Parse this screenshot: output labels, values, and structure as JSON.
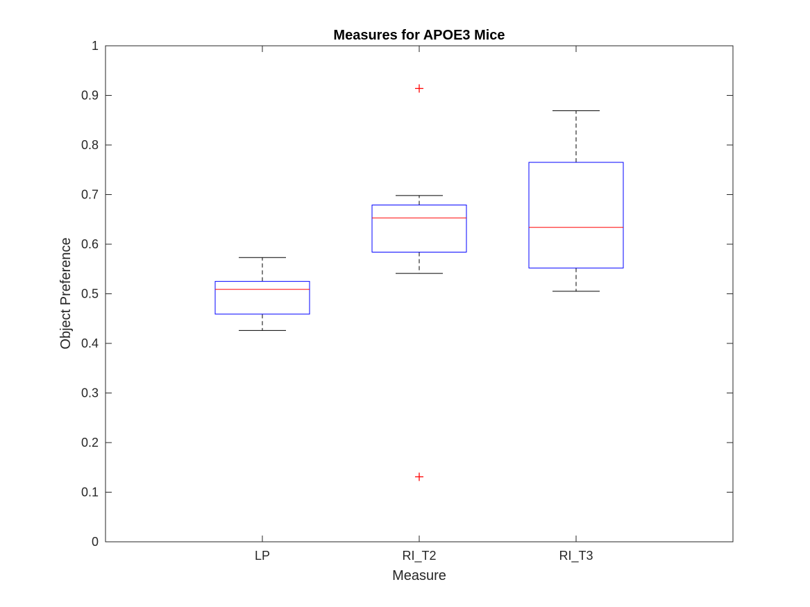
{
  "chart_data": {
    "type": "boxplot",
    "title": "Measures for APOE3 Mice",
    "xlabel": "Measure",
    "ylabel": "Object Preference",
    "ylim": [
      0,
      1
    ],
    "yticks": [
      "0",
      "0.1",
      "0.2",
      "0.3",
      "0.4",
      "0.5",
      "0.6",
      "0.7",
      "0.8",
      "0.9",
      "1"
    ],
    "categories": [
      "LP",
      "RI_T2",
      "RI_T3"
    ],
    "boxes": [
      {
        "category": "LP",
        "whisker_low": 0.426,
        "q1": 0.459,
        "median": 0.509,
        "q3": 0.525,
        "whisker_high": 0.573,
        "outliers": []
      },
      {
        "category": "RI_T2",
        "whisker_low": 0.541,
        "q1": 0.584,
        "median": 0.653,
        "q3": 0.679,
        "whisker_high": 0.698,
        "outliers": [
          0.914,
          0.131
        ]
      },
      {
        "category": "RI_T3",
        "whisker_low": 0.505,
        "q1": 0.552,
        "median": 0.634,
        "q3": 0.765,
        "whisker_high": 0.869,
        "outliers": []
      }
    ],
    "grid": false,
    "colors": {
      "box": "#0000ff",
      "median": "#ff0000",
      "whisker": "#000000",
      "outlier": "#ff0000",
      "axes": "#262626"
    }
  }
}
